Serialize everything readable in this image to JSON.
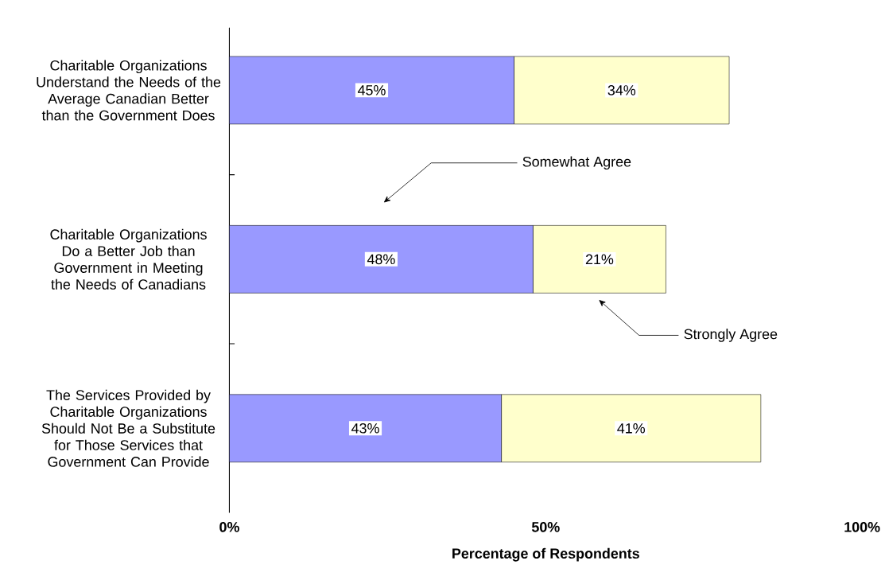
{
  "chart_data": {
    "type": "bar",
    "orientation": "horizontal",
    "stacked": true,
    "categories": [
      "Charitable Organizations Understand the Needs of the Average Canadian Better than the Government Does",
      "Charitable Organizations Do a Better Job than Government in Meeting the Needs of Canadians",
      "The Services Provided by Charitable Organizations Should Not Be a Substitute for Those Services that Government Can Provide"
    ],
    "series": [
      {
        "name": "Somewhat Agree",
        "color": "#9999ff",
        "values": [
          45,
          48,
          43
        ],
        "value_labels": [
          "45%",
          "48%",
          "43%"
        ]
      },
      {
        "name": "Strongly Agree",
        "color": "#ffffcc",
        "values": [
          34,
          21,
          41
        ],
        "value_labels": [
          "34%",
          "21%",
          "41%"
        ]
      }
    ],
    "xlim": [
      0,
      100
    ],
    "xticks": [
      {
        "value": 0,
        "label": "0%"
      },
      {
        "value": 50,
        "label": "50%"
      },
      {
        "value": 100,
        "label": "100%"
      }
    ],
    "xlabel": "Percentage of Respondents"
  }
}
